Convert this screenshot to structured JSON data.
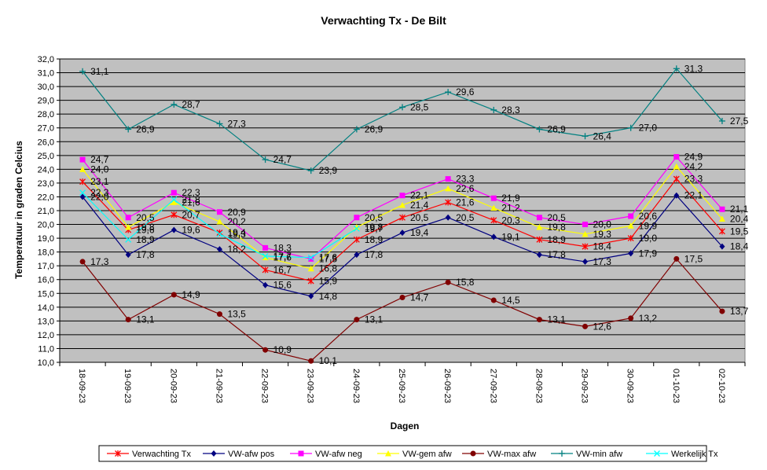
{
  "chart_data": {
    "type": "line",
    "title": "Verwachting Tx - De Bilt",
    "xlabel": "Dagen",
    "ylabel": "Temperatuur in graden Celcius",
    "ylim": [
      10,
      32
    ],
    "ytick_step": 1,
    "ytick_labels": [
      "10,0",
      "11,0",
      "12,0",
      "13,0",
      "14,0",
      "15,0",
      "16,0",
      "17,0",
      "18,0",
      "19,0",
      "20,0",
      "21,0",
      "22,0",
      "23,0",
      "24,0",
      "25,0",
      "26,0",
      "27,0",
      "28,0",
      "29,0",
      "30,0",
      "31,0",
      "32,0"
    ],
    "grid": true,
    "plot_background": "#c0c0c0",
    "legend_position": "bottom",
    "categories": [
      "18-09-23",
      "19-09-23",
      "20-09-23",
      "21-09-23",
      "22-09-23",
      "23-09-23",
      "24-09-23",
      "25-09-23",
      "26-09-23",
      "27-09-23",
      "28-09-23",
      "29-09-23",
      "30-09-23",
      "01-10-23",
      "02-10-23"
    ],
    "series": [
      {
        "name": "Verwachting Tx",
        "color": "#ff0000",
        "marker": "star",
        "values": [
          23.1,
          19.6,
          20.7,
          19.4,
          16.7,
          15.9,
          18.9,
          20.5,
          21.6,
          20.3,
          18.9,
          18.4,
          19.0,
          23.3,
          19.5
        ],
        "labels": [
          "23,1",
          "19,6",
          "20,7",
          "19,4",
          "16,7",
          "15,9",
          "18,9",
          "20,5",
          "21,6",
          "20,3",
          "18,9",
          "18,4",
          "19,0",
          "23,3",
          "19,5"
        ]
      },
      {
        "name": "VW-afw pos",
        "color": "#000080",
        "marker": "diamond",
        "values": [
          22.0,
          17.8,
          19.6,
          18.2,
          15.6,
          14.8,
          17.8,
          19.4,
          20.5,
          19.1,
          17.8,
          17.3,
          17.9,
          22.1,
          18.4
        ],
        "labels": [
          "22,0",
          "17,8",
          "19,6",
          "18,2",
          "15,6",
          "14,8",
          "17,8",
          "19,4",
          "20,5",
          "19,1",
          "17,8",
          "17,3",
          "17,9",
          "22,1",
          "18,4"
        ]
      },
      {
        "name": "VW-afw neg",
        "color": "#ff00ff",
        "marker": "square",
        "values": [
          24.7,
          20.5,
          22.3,
          20.9,
          18.3,
          17.5,
          20.5,
          22.1,
          23.3,
          21.9,
          20.5,
          20.0,
          20.6,
          24.9,
          21.1
        ],
        "labels": [
          "24,7",
          "20,5",
          "22,3",
          "20,9",
          "18,3",
          "17,5",
          "20,5",
          "22,1",
          "23,3",
          "21,9",
          "20,5",
          "20,0",
          "20,6",
          "24,9",
          "21,1"
        ]
      },
      {
        "name": "VW-gem afw",
        "color": "#ffff00",
        "marker": "triangle",
        "values": [
          24.0,
          19.8,
          21.6,
          20.2,
          17.6,
          16.8,
          19.8,
          21.4,
          22.6,
          21.2,
          19.8,
          19.3,
          19.9,
          24.2,
          20.4
        ],
        "labels": [
          "24,0",
          "19,8",
          "21,6",
          "20,2",
          "17,6",
          "16,8",
          "19,8",
          "21,4",
          "22,6",
          "21,2",
          "19,8",
          "19,3",
          "19,9",
          "24,2",
          "20,4"
        ]
      },
      {
        "name": "VW-max afw",
        "color": "#800000",
        "marker": "circle",
        "values": [
          17.3,
          13.1,
          14.9,
          13.5,
          10.9,
          10.1,
          13.1,
          14.7,
          15.8,
          14.5,
          13.1,
          12.6,
          13.2,
          17.5,
          13.7
        ],
        "labels": [
          "17,3",
          "13,1",
          "14,9",
          "13,5",
          "10,9",
          "10,1",
          "13,1",
          "14,7",
          "15,8",
          "14,5",
          "13,1",
          "12,6",
          "13,2",
          "17,5",
          "13,7"
        ]
      },
      {
        "name": "VW-min afw",
        "color": "#008080",
        "marker": "plus",
        "values": [
          31.1,
          26.9,
          28.7,
          27.3,
          24.7,
          23.9,
          26.9,
          28.5,
          29.6,
          28.3,
          26.9,
          26.4,
          27.0,
          31.3,
          27.5
        ],
        "labels": [
          "31,1",
          "26,9",
          "28,7",
          "27,3",
          "24,7",
          "23,9",
          "26,9",
          "28,5",
          "29,6",
          "28,3",
          "26,9",
          "26,4",
          "27,0",
          "31,3",
          "27,5"
        ]
      },
      {
        "name": "Werkelijk Tx",
        "color": "#00ffff",
        "marker": "x",
        "values": [
          22.3,
          18.9,
          21.8,
          19.3,
          17.7,
          17.6,
          19.7,
          null,
          null,
          null,
          null,
          null,
          null,
          null,
          null
        ],
        "labels": [
          "22,3",
          "18,9",
          "21,8",
          "19,3",
          "17,7",
          "17,6",
          "19,7",
          "",
          "",
          "",
          "",
          "",
          "",
          "",
          ""
        ]
      }
    ]
  }
}
